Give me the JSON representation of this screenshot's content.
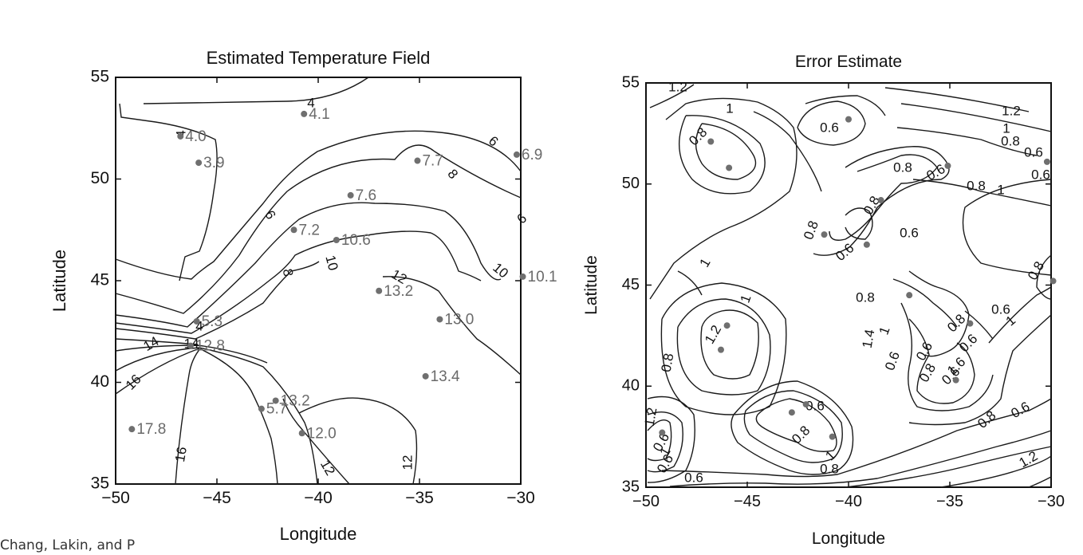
{
  "caption": "Chang, Lakin, and P",
  "chart_data": [
    {
      "type": "contour",
      "title": "Estimated Temperature Field",
      "xlabel": "Longitude",
      "ylabel": "Latitude",
      "xlim": [
        -50,
        -30
      ],
      "ylim": [
        35,
        55
      ],
      "xticks": [
        -50,
        -45,
        -40,
        -35,
        -30
      ],
      "yticks": [
        35,
        40,
        45,
        50,
        55
      ],
      "xtick_labels": [
        "−50",
        "−45",
        "−40",
        "−35",
        "−30"
      ],
      "ytick_labels": [
        "35",
        "40",
        "45",
        "50",
        "55"
      ],
      "grid": false,
      "points": [
        {
          "x": -46.8,
          "y": 52.1,
          "label": "4.0"
        },
        {
          "x": -40.7,
          "y": 53.2,
          "label": "4.1"
        },
        {
          "x": -45.9,
          "y": 50.8,
          "label": "3.9"
        },
        {
          "x": -35.1,
          "y": 50.9,
          "label": "7.7"
        },
        {
          "x": -30.2,
          "y": 51.2,
          "label": "6.9"
        },
        {
          "x": -38.4,
          "y": 49.2,
          "label": "7.6"
        },
        {
          "x": -41.2,
          "y": 47.5,
          "label": "7.2"
        },
        {
          "x": -39.1,
          "y": 47.0,
          "label": "10.6"
        },
        {
          "x": -29.9,
          "y": 45.2,
          "label": "10.1"
        },
        {
          "x": -37.0,
          "y": 44.5,
          "label": "13.2"
        },
        {
          "x": -46.0,
          "y": 43.0,
          "label": "5.3"
        },
        {
          "x": -34.0,
          "y": 43.1,
          "label": "13.0"
        },
        {
          "x": -46.3,
          "y": 41.8,
          "label": "12.8"
        },
        {
          "x": -34.7,
          "y": 40.3,
          "label": "13.4"
        },
        {
          "x": -42.1,
          "y": 39.1,
          "label": "13.2"
        },
        {
          "x": -42.8,
          "y": 38.7,
          "label": "5.7"
        },
        {
          "x": -49.2,
          "y": 37.7,
          "label": "17.8"
        },
        {
          "x": -40.8,
          "y": 37.5,
          "label": "12.0"
        }
      ],
      "contour_levels": [
        "4",
        "4",
        "4",
        "6",
        "6",
        "6",
        "8",
        "8",
        "10",
        "10",
        "12",
        "12",
        "12",
        "14",
        "14",
        "16",
        "16"
      ]
    },
    {
      "type": "contour",
      "title": "Error Estimate",
      "xlabel": "Longitude",
      "ylabel": "Latitude",
      "xlim": [
        -50,
        -30
      ],
      "ylim": [
        35,
        55
      ],
      "xticks": [
        -50,
        -45,
        -40,
        -35,
        -30
      ],
      "yticks": [
        35,
        40,
        45,
        50,
        55
      ],
      "xtick_labels": [
        "−50",
        "−45",
        "−40",
        "−35",
        "−30"
      ],
      "ytick_labels": [
        "35",
        "40",
        "45",
        "50",
        "55"
      ],
      "grid": false,
      "points": [
        {
          "x": -46.8,
          "y": 52.1
        },
        {
          "x": -40.0,
          "y": 53.2
        },
        {
          "x": -45.9,
          "y": 50.8
        },
        {
          "x": -35.1,
          "y": 50.9
        },
        {
          "x": -30.2,
          "y": 51.1
        },
        {
          "x": -38.4,
          "y": 49.2
        },
        {
          "x": -41.2,
          "y": 47.5
        },
        {
          "x": -39.1,
          "y": 47.0
        },
        {
          "x": -29.9,
          "y": 45.2
        },
        {
          "x": -37.0,
          "y": 44.5
        },
        {
          "x": -46.0,
          "y": 43.0
        },
        {
          "x": -34.0,
          "y": 43.1
        },
        {
          "x": -46.3,
          "y": 41.8
        },
        {
          "x": -34.7,
          "y": 40.3
        },
        {
          "x": -42.1,
          "y": 39.1
        },
        {
          "x": -42.8,
          "y": 38.7
        },
        {
          "x": -49.2,
          "y": 37.7
        },
        {
          "x": -40.8,
          "y": 37.5
        }
      ],
      "contour_levels": [
        "1.2",
        "1",
        "0.6",
        "0.8",
        "1.2",
        "1",
        "0.8",
        "0.6",
        "0.6",
        "0.8",
        "0.8",
        "0.6",
        "0.8",
        "0.6",
        "0.6",
        "0.8",
        "1",
        "1",
        "0.8",
        "1.2",
        "1",
        "0.8",
        "0.6",
        "0.8",
        "0.6",
        "0.6",
        "0.8",
        "0.6",
        "0.6",
        "0.8",
        "1",
        "0.8",
        "0.6",
        "1",
        "0.6",
        "0.6",
        "0.8",
        "0.6",
        "0.8",
        "0.6",
        "1.2",
        "1",
        "1.2",
        "1.4",
        "1.6",
        "1"
      ]
    }
  ]
}
